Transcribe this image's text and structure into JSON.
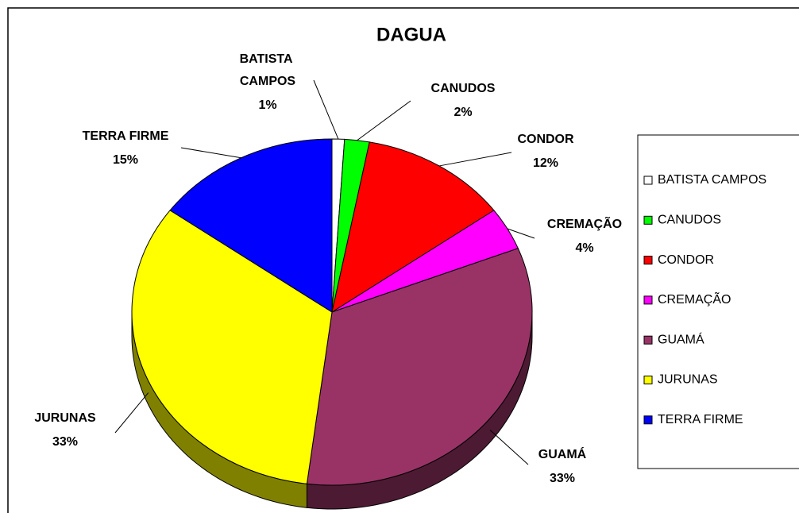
{
  "chart_data": {
    "type": "pie",
    "title": "DAGUA",
    "categories": [
      "BATISTA CAMPOS",
      "CANUDOS",
      "CONDOR",
      "CREMAÇÃO",
      "GUAMÁ",
      "JURUNAS",
      "TERRA FIRME"
    ],
    "values": [
      1,
      2,
      12,
      4,
      33,
      33,
      15
    ],
    "value_labels": [
      "1%",
      "2%",
      "12%",
      "4%",
      "33%",
      "33%",
      "15%"
    ],
    "colors": [
      "#ffffff",
      "#00ff00",
      "#ff0000",
      "#ff00ff",
      "#993366",
      "#ffff00",
      "#0000ff"
    ],
    "legend": "right"
  }
}
